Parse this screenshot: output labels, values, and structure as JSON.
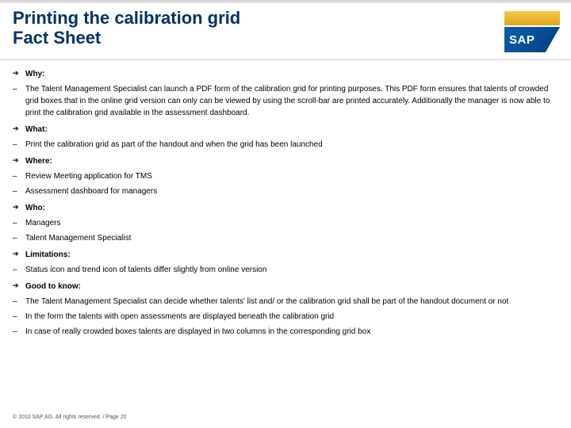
{
  "title": {
    "line1": "Printing the calibration grid",
    "line2": "Fact Sheet"
  },
  "logo": {
    "text": "SAP"
  },
  "sections": {
    "why": {
      "heading": "Why:",
      "items": [
        "The Talent Management Specialist can launch a PDF form of the calibration grid for printing purposes. This PDF form ensures that talents of crowded grid boxes that in the online grid version can only can be viewed by using the scroll-bar are printed accurately. Additionally the manager is now able to print the calibration grid available in the assessment dashboard."
      ]
    },
    "what": {
      "heading": "What:",
      "items": [
        "Print the calibration grid as part of the handout and when the grid has been launched"
      ]
    },
    "where": {
      "heading": "Where:",
      "items": [
        "Review Meeting application for TMS",
        "Assessment dashboard for managers"
      ]
    },
    "who": {
      "heading": "Who:",
      "items": [
        "Managers",
        "Talent Management Specialist"
      ]
    },
    "limitations": {
      "heading": "Limitations:",
      "items": [
        "Status icon and trend icon of talents differ slightly from online version"
      ]
    },
    "good": {
      "heading": "Good to know:",
      "items": [
        "The Talent Management Specialist can decide whether talents' list and/ or the calibration grid shall be part of the handout document or not",
        "In the form the talents with open assessments are displayed beneath the calibration grid",
        "In case of really crowded boxes talents are displayed in two columns in the corresponding grid box"
      ]
    }
  },
  "footer": "© 2010 SAP AG. All rights reserved. / Page 20",
  "colors": {
    "title_color": "#003366",
    "arrow_color": "#003366",
    "text_color": "#000000"
  }
}
